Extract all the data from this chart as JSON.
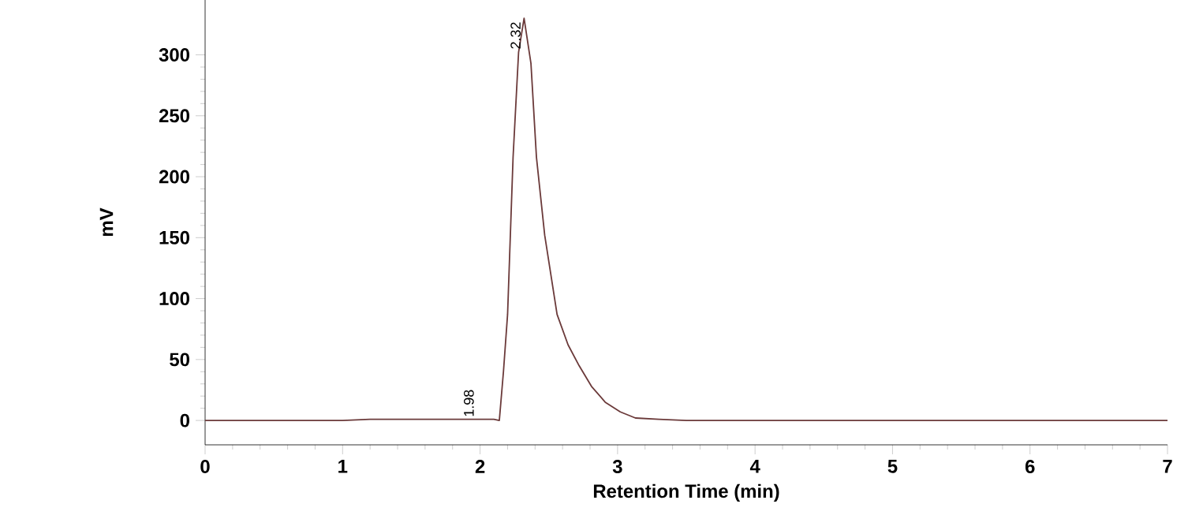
{
  "chart_data": {
    "type": "line",
    "xlabel": "Retention Time (min)",
    "ylabel": "mV",
    "x": [
      0,
      1.0,
      1.2,
      1.6,
      2.0,
      2.1,
      2.14,
      2.17,
      2.2,
      2.24,
      2.28,
      2.32,
      2.37,
      2.41,
      2.47,
      2.56,
      2.64,
      2.72,
      2.81,
      2.91,
      3.02,
      3.13,
      3.3,
      3.5,
      4.0,
      5.0,
      6.0,
      7.0
    ],
    "series": [
      {
        "color": "#6b3a3a",
        "values": [
          0,
          0,
          1,
          1,
          1,
          1,
          0,
          40,
          87,
          216,
          302,
          330,
          293,
          216,
          152,
          87,
          62,
          45,
          28,
          15,
          7,
          2,
          1,
          0,
          0,
          0,
          0,
          0
        ]
      }
    ],
    "xlim": [
      0,
      7
    ],
    "ylim": [
      -20,
      345
    ],
    "xticks": [
      0,
      1,
      2,
      3,
      4,
      5,
      6,
      7
    ],
    "yticks": [
      0,
      50,
      100,
      150,
      200,
      250,
      300
    ],
    "annotations": [
      {
        "text": "1.98",
        "x": 1.98,
        "y": 0
      },
      {
        "text": "2.32",
        "x": 2.32,
        "y": 330
      }
    ],
    "marker": "none",
    "line_style": "solid"
  }
}
